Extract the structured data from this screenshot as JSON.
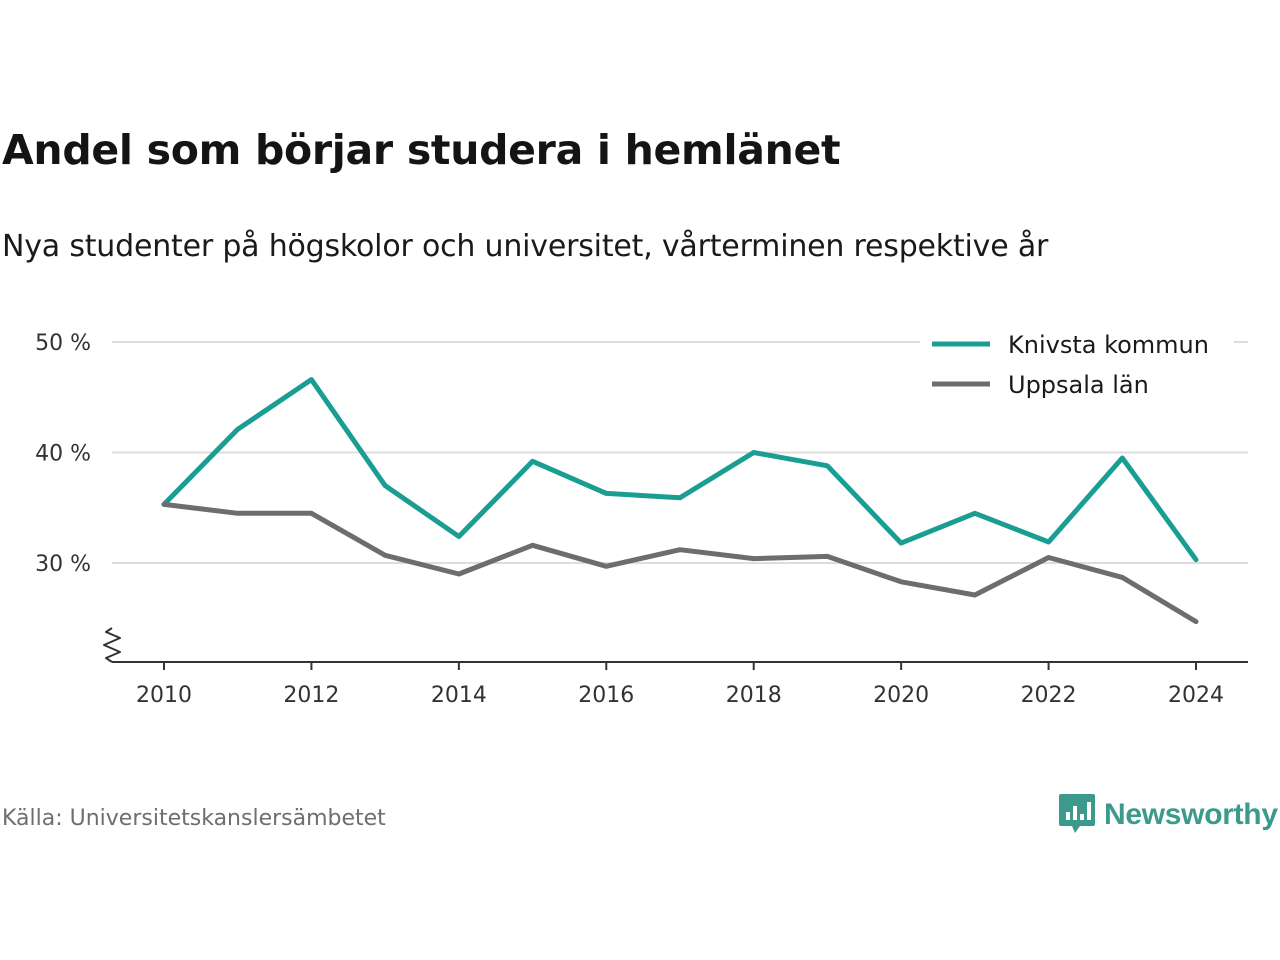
{
  "header": {
    "title": "Andel som börjar studera i hemlänet",
    "subtitle": "Nya studenter på högskolor och universitet, vårterminen respektive år"
  },
  "footer": {
    "source": "Källa: Universitetskanslersämbetet",
    "brand": "Newsworthy",
    "brand_icon": "bar-chart-speech-bubble-icon"
  },
  "colors": {
    "knivsta": "#1a9e93",
    "uppsala": "#6d6d70",
    "grid": "#dddddd",
    "axis": "#333333",
    "brand": "#3c9a8d"
  },
  "chart_data": {
    "type": "line",
    "title": "Andel som börjar studera i hemlänet",
    "subtitle": "Nya studenter på högskolor och universitet, vårterminen respektive år",
    "xlabel": "",
    "ylabel": "",
    "x": [
      2010,
      2011,
      2012,
      2013,
      2014,
      2015,
      2016,
      2017,
      2018,
      2019,
      2020,
      2021,
      2022,
      2023,
      2024
    ],
    "x_ticks": [
      "2010",
      "2012",
      "2014",
      "2016",
      "2018",
      "2020",
      "2022",
      "2024"
    ],
    "y_ticks": [
      "30 %",
      "40 %",
      "50 %"
    ],
    "y_tick_values": [
      30,
      40,
      50
    ],
    "ylim": [
      21,
      50
    ],
    "y_axis_break": true,
    "grid": true,
    "legend_position": "top-right",
    "series": [
      {
        "name": "Knivsta kommun",
        "color": "#1a9e93",
        "values": [
          35.3,
          42.1,
          46.6,
          37.0,
          32.4,
          39.2,
          36.3,
          35.9,
          40.0,
          38.8,
          31.8,
          34.5,
          31.9,
          39.5,
          30.3
        ]
      },
      {
        "name": "Uppsala län",
        "color": "#6d6d70",
        "values": [
          35.3,
          34.5,
          34.5,
          30.7,
          29.0,
          31.6,
          29.7,
          31.2,
          30.4,
          30.6,
          28.3,
          27.1,
          30.5,
          28.7,
          24.7
        ]
      }
    ]
  }
}
